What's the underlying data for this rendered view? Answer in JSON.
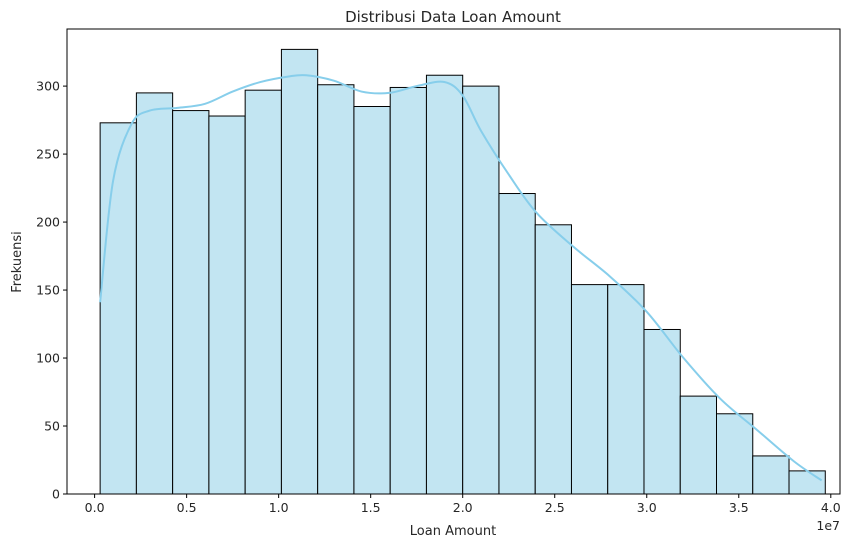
{
  "chart_data": {
    "type": "bar",
    "title": "Distribusi Data Loan Amount",
    "xlabel": "Loan Amount",
    "ylabel": "Frekuensi",
    "x_offset_label": "1e7",
    "xlim": [
      -0.15,
      4.05
    ],
    "ylim": [
      0,
      342
    ],
    "x_ticks": [
      0.0,
      0.5,
      1.0,
      1.5,
      2.0,
      2.5,
      3.0,
      3.5,
      4.0
    ],
    "x_tick_labels": [
      "0.0",
      "0.5",
      "1.0",
      "1.5",
      "2.0",
      "2.5",
      "3.0",
      "3.5",
      "4.0"
    ],
    "y_ticks": [
      0,
      50,
      100,
      150,
      200,
      250,
      300
    ],
    "y_tick_labels": [
      "0",
      "50",
      "100",
      "150",
      "200",
      "250",
      "300"
    ],
    "bin_edges": [
      0.03,
      0.227,
      0.424,
      0.621,
      0.818,
      1.015,
      1.212,
      1.409,
      1.606,
      1.803,
      2.0,
      2.197,
      2.394,
      2.591,
      2.788,
      2.985,
      3.182,
      3.379,
      3.576,
      3.773,
      3.97
    ],
    "values": [
      273,
      295,
      282,
      278,
      297,
      327,
      301,
      285,
      299,
      308,
      300,
      221,
      198,
      154,
      154,
      121,
      72,
      59,
      28,
      17
    ],
    "kde": {
      "x": [
        0.03,
        0.1,
        0.2,
        0.3,
        0.45,
        0.6,
        0.75,
        0.9,
        1.05,
        1.15,
        1.3,
        1.45,
        1.6,
        1.75,
        1.9,
        2.0,
        2.1,
        2.25,
        2.4,
        2.6,
        2.8,
        3.0,
        3.2,
        3.4,
        3.6,
        3.8,
        3.95
      ],
      "y": [
        141,
        230,
        272,
        282,
        284,
        287,
        296,
        303,
        307,
        308,
        304,
        296,
        295,
        300,
        303,
        293,
        267,
        235,
        207,
        182,
        160,
        134,
        100,
        70,
        47,
        24,
        10
      ]
    },
    "bar_color": "#c2e5f2",
    "edge_color": "#000000",
    "kde_color": "#87ceeb",
    "grid": false,
    "legend": "none"
  }
}
